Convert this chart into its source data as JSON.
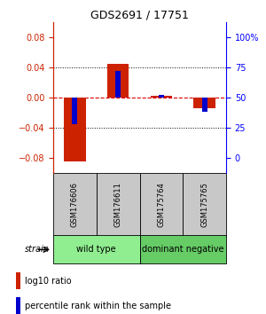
{
  "title": "GDS2691 / 17751",
  "samples": [
    "GSM176606",
    "GSM176611",
    "GSM175764",
    "GSM175765"
  ],
  "log10_ratio": [
    -0.085,
    0.045,
    0.002,
    -0.015
  ],
  "percentile_rank": [
    28.0,
    72.0,
    52.0,
    38.0
  ],
  "groups": [
    {
      "label": "wild type",
      "samples": [
        0,
        1
      ],
      "color": "#90ee90"
    },
    {
      "label": "dominant negative",
      "samples": [
        2,
        3
      ],
      "color": "#66cc66"
    }
  ],
  "ylim": [
    -0.1,
    0.1
  ],
  "yticks_left": [
    -0.08,
    -0.04,
    0,
    0.04,
    0.08
  ],
  "yticks_right": [
    0,
    25,
    50,
    75,
    100
  ],
  "bar_width": 0.5,
  "blue_bar_width": 0.12,
  "red_color": "#cc2200",
  "blue_color": "#0000cc",
  "dashed_red_color": "#dd0000",
  "strain_label": "strain",
  "legend_red": "log10 ratio",
  "legend_blue": "percentile rank within the sample",
  "background_color": "#ffffff",
  "label_area_color": "#c8c8c8"
}
